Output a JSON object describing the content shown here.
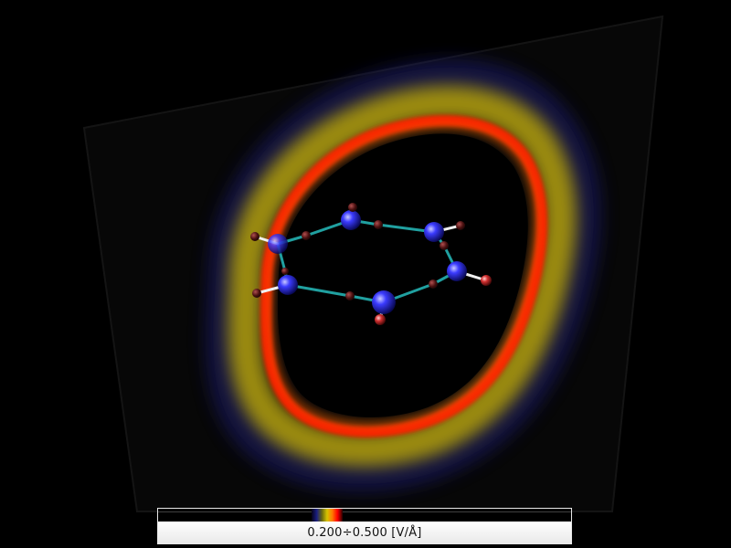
{
  "colors": {
    "background": "#000000",
    "isosurface_outer": "#d4c000",
    "isosurface_inner": "#ff1a00",
    "isosurface_fringe": "#202080",
    "atom_large": "#2a2aff",
    "atom_small": "#ff6060",
    "bond_ring": "#20a0a0",
    "bond_terminal": "#f0f0f0"
  },
  "colorbar": {
    "label": "0.200÷0.500 [V/Å]"
  }
}
